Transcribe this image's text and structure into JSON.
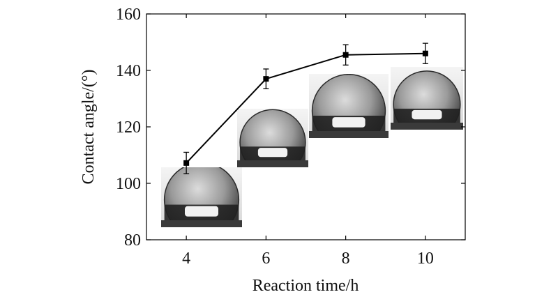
{
  "chart_data": {
    "type": "line",
    "xlabel": "Reaction time/h",
    "ylabel": "Contact angle/(°)",
    "xlim": [
      3,
      11
    ],
    "ylim": [
      80,
      160
    ],
    "x_ticks": [
      4,
      6,
      8,
      10
    ],
    "y_ticks": [
      80,
      100,
      120,
      140,
      160
    ],
    "series": [
      {
        "x": [
          4,
          6,
          8,
          10
        ],
        "values": [
          107.2,
          137.0,
          145.5,
          146.0
        ],
        "error": [
          3.8,
          3.5,
          3.6,
          3.6
        ]
      }
    ],
    "grid": false,
    "legend": "none",
    "insets": [
      {
        "depicts": "water-droplet-photo",
        "x": 4
      },
      {
        "depicts": "water-droplet-photo",
        "x": 6
      },
      {
        "depicts": "water-droplet-photo",
        "x": 8
      },
      {
        "depicts": "water-droplet-photo",
        "x": 10
      }
    ],
    "colors": {
      "line": "#000000",
      "axis": "#000000"
    }
  }
}
